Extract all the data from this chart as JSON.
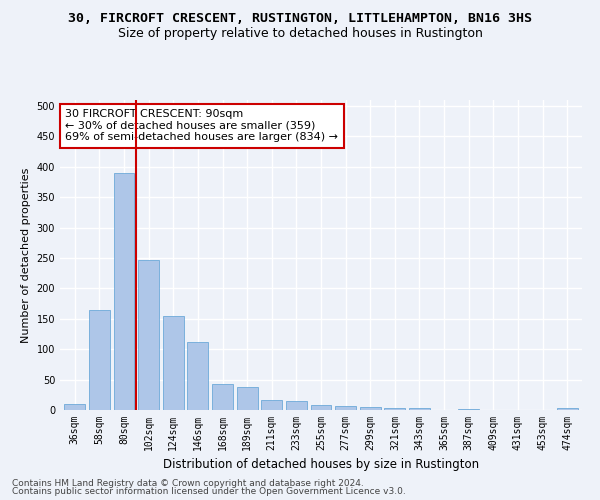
{
  "title1": "30, FIRCROFT CRESCENT, RUSTINGTON, LITTLEHAMPTON, BN16 3HS",
  "title2": "Size of property relative to detached houses in Rustington",
  "xlabel": "Distribution of detached houses by size in Rustington",
  "ylabel": "Number of detached properties",
  "categories": [
    "36sqm",
    "58sqm",
    "80sqm",
    "102sqm",
    "124sqm",
    "146sqm",
    "168sqm",
    "189sqm",
    "211sqm",
    "233sqm",
    "255sqm",
    "277sqm",
    "299sqm",
    "321sqm",
    "343sqm",
    "365sqm",
    "387sqm",
    "409sqm",
    "431sqm",
    "453sqm",
    "474sqm"
  ],
  "values": [
    10,
    165,
    390,
    247,
    155,
    112,
    42,
    38,
    17,
    14,
    8,
    7,
    5,
    4,
    4,
    0,
    2,
    0,
    0,
    0,
    3
  ],
  "bar_color": "#aec6e8",
  "bar_edge_color": "#5a9fd4",
  "vline_x": 2.5,
  "vline_color": "#cc0000",
  "annotation_text": "30 FIRCROFT CRESCENT: 90sqm\n← 30% of detached houses are smaller (359)\n69% of semi-detached houses are larger (834) →",
  "annotation_box_color": "white",
  "annotation_box_edge": "#cc0000",
  "ylim": [
    0,
    510
  ],
  "yticks": [
    0,
    50,
    100,
    150,
    200,
    250,
    300,
    350,
    400,
    450,
    500
  ],
  "footer1": "Contains HM Land Registry data © Crown copyright and database right 2024.",
  "footer2": "Contains public sector information licensed under the Open Government Licence v3.0.",
  "bg_color": "#eef2f9",
  "grid_color": "#ffffff",
  "title1_fontsize": 9.5,
  "title2_fontsize": 9,
  "xlabel_fontsize": 8.5,
  "ylabel_fontsize": 8,
  "tick_fontsize": 7,
  "annot_fontsize": 8,
  "footer_fontsize": 6.5
}
